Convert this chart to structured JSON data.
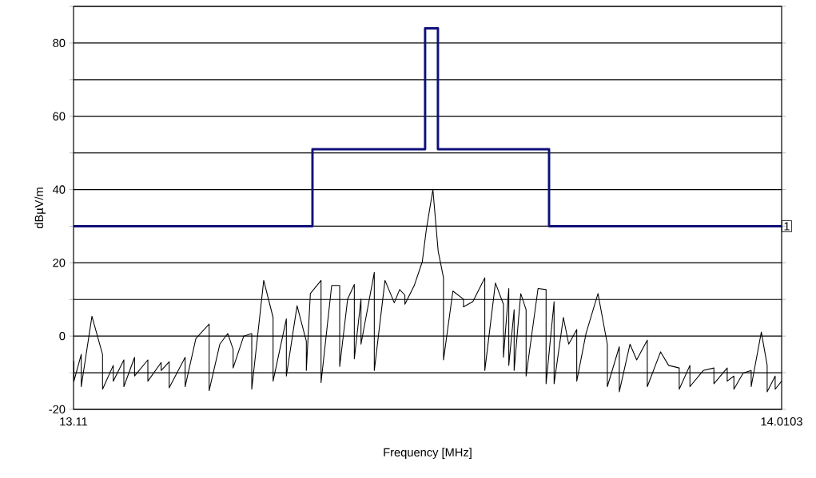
{
  "chart_data": {
    "type": "line",
    "xlabel": "Frequency [MHz]",
    "ylabel": "dBµV/m",
    "xlim": [
      13.11,
      14.0103
    ],
    "xticks": [
      13.11,
      14.0103
    ],
    "ylim": [
      -20,
      90
    ],
    "yticks": [
      -20,
      {
        "value": -10,
        "label": null
      },
      0,
      {
        "value": 10,
        "label": null
      },
      20,
      {
        "value": 30,
        "label": null
      },
      40,
      {
        "value": 50,
        "label": null
      },
      60,
      {
        "value": 70,
        "label": null
      },
      80,
      {
        "value": 90,
        "label": null
      }
    ],
    "grid": "y",
    "marker": "none",
    "line_style": "solid",
    "annotations": [
      {
        "text": "1",
        "x": 14.0103,
        "y": 30
      }
    ],
    "series": [
      {
        "color": "#000000",
        "x": [
          13.11,
          13.1105,
          13.1105,
          13.1198,
          13.1198,
          13.1334,
          13.1469,
          13.1469,
          13.1605,
          13.1605,
          13.174,
          13.174,
          13.1876,
          13.1876,
          13.2045,
          13.2045,
          13.2214,
          13.2214,
          13.2316,
          13.2316,
          13.2519,
          13.2519,
          13.2655,
          13.2824,
          13.2824,
          13.296,
          13.3061,
          13.3129,
          13.3129,
          13.3264,
          13.3366,
          13.3366,
          13.3518,
          13.3637,
          13.3637,
          13.3806,
          13.3806,
          13.3942,
          13.406,
          13.406,
          13.4111,
          13.4247,
          13.4247,
          13.4382,
          13.4484,
          13.4484,
          13.4585,
          13.467,
          13.467,
          13.4755,
          13.4755,
          13.4924,
          13.4924,
          13.506,
          13.5178,
          13.5246,
          13.5313,
          13.5313,
          13.5432,
          13.5534,
          13.5585,
          13.5669,
          13.5736,
          13.5804,
          13.5804,
          13.5923,
          13.6058,
          13.6058,
          13.6177,
          13.6329,
          13.6329,
          13.6464,
          13.6566,
          13.6566,
          13.6634,
          13.6634,
          13.6702,
          13.6702,
          13.6786,
          13.6854,
          13.6854,
          13.7006,
          13.7108,
          13.7108,
          13.721,
          13.721,
          13.7328,
          13.7396,
          13.7498,
          13.7498,
          13.7616,
          13.7768,
          13.7887,
          13.7887,
          13.8039,
          13.8039,
          13.8175,
          13.826,
          13.8395,
          13.8395,
          13.8564,
          13.8666,
          13.8801,
          13.8801,
          13.8937,
          13.8937,
          13.9106,
          13.9242,
          13.9242,
          13.9411,
          13.9411,
          13.9496,
          13.9496,
          13.9614,
          13.9716,
          13.9716,
          13.9845,
          13.9919,
          13.9919,
          14.0021,
          14.0021,
          14.0103
        ],
        "values": [
          -7,
          -6.9,
          -12.3,
          -5,
          -13.8,
          5.4,
          -5,
          -14.5,
          -8,
          -12.3,
          -6.5,
          -13.8,
          -5.8,
          -10.9,
          -6.5,
          -12.3,
          -7.2,
          -9.4,
          -7,
          -14.1,
          -5.8,
          -13.8,
          -0.7,
          3.3,
          -14.9,
          -2.2,
          0.7,
          -3.6,
          -8.7,
          0,
          0.7,
          -14.5,
          15.2,
          5.1,
          -12.3,
          4.7,
          -10.9,
          8.3,
          -1.4,
          -9.4,
          11.6,
          15.2,
          -12.7,
          13.8,
          13.8,
          -8.3,
          10.1,
          14.1,
          -6.2,
          10.1,
          -2.2,
          17.4,
          -9.4,
          15.2,
          9.1,
          12.7,
          11.2,
          8.7,
          13.8,
          20.3,
          29,
          40,
          23.2,
          15.9,
          -6.5,
          12.3,
          10.1,
          8,
          9.4,
          15.9,
          -9.4,
          14.5,
          8.7,
          -5.8,
          13,
          -8,
          7.2,
          -9.4,
          11.6,
          7.2,
          -10.9,
          13,
          12.7,
          -13,
          9.4,
          -13,
          5.1,
          -2.2,
          1.8,
          -12.3,
          0.7,
          11.6,
          -2.2,
          -13.8,
          -2.9,
          -15.2,
          -2.2,
          -6.5,
          -1.1,
          -13.8,
          -4.3,
          -8,
          -8.7,
          -14.5,
          -8,
          -13.8,
          -9.4,
          -8.7,
          -13,
          -8.7,
          -12.3,
          -10.9,
          -14.5,
          -10.1,
          -9.4,
          -13.8,
          1.1,
          -8,
          -15.2,
          -10.9,
          -14.5,
          -12.3
        ]
      },
      {
        "type": "step",
        "color": "#10107a",
        "x": [
          13.11,
          13.4138,
          13.557,
          13.5733,
          13.7146,
          14.0103
        ],
        "values": [
          30,
          51,
          84,
          51,
          30,
          30
        ]
      }
    ]
  }
}
